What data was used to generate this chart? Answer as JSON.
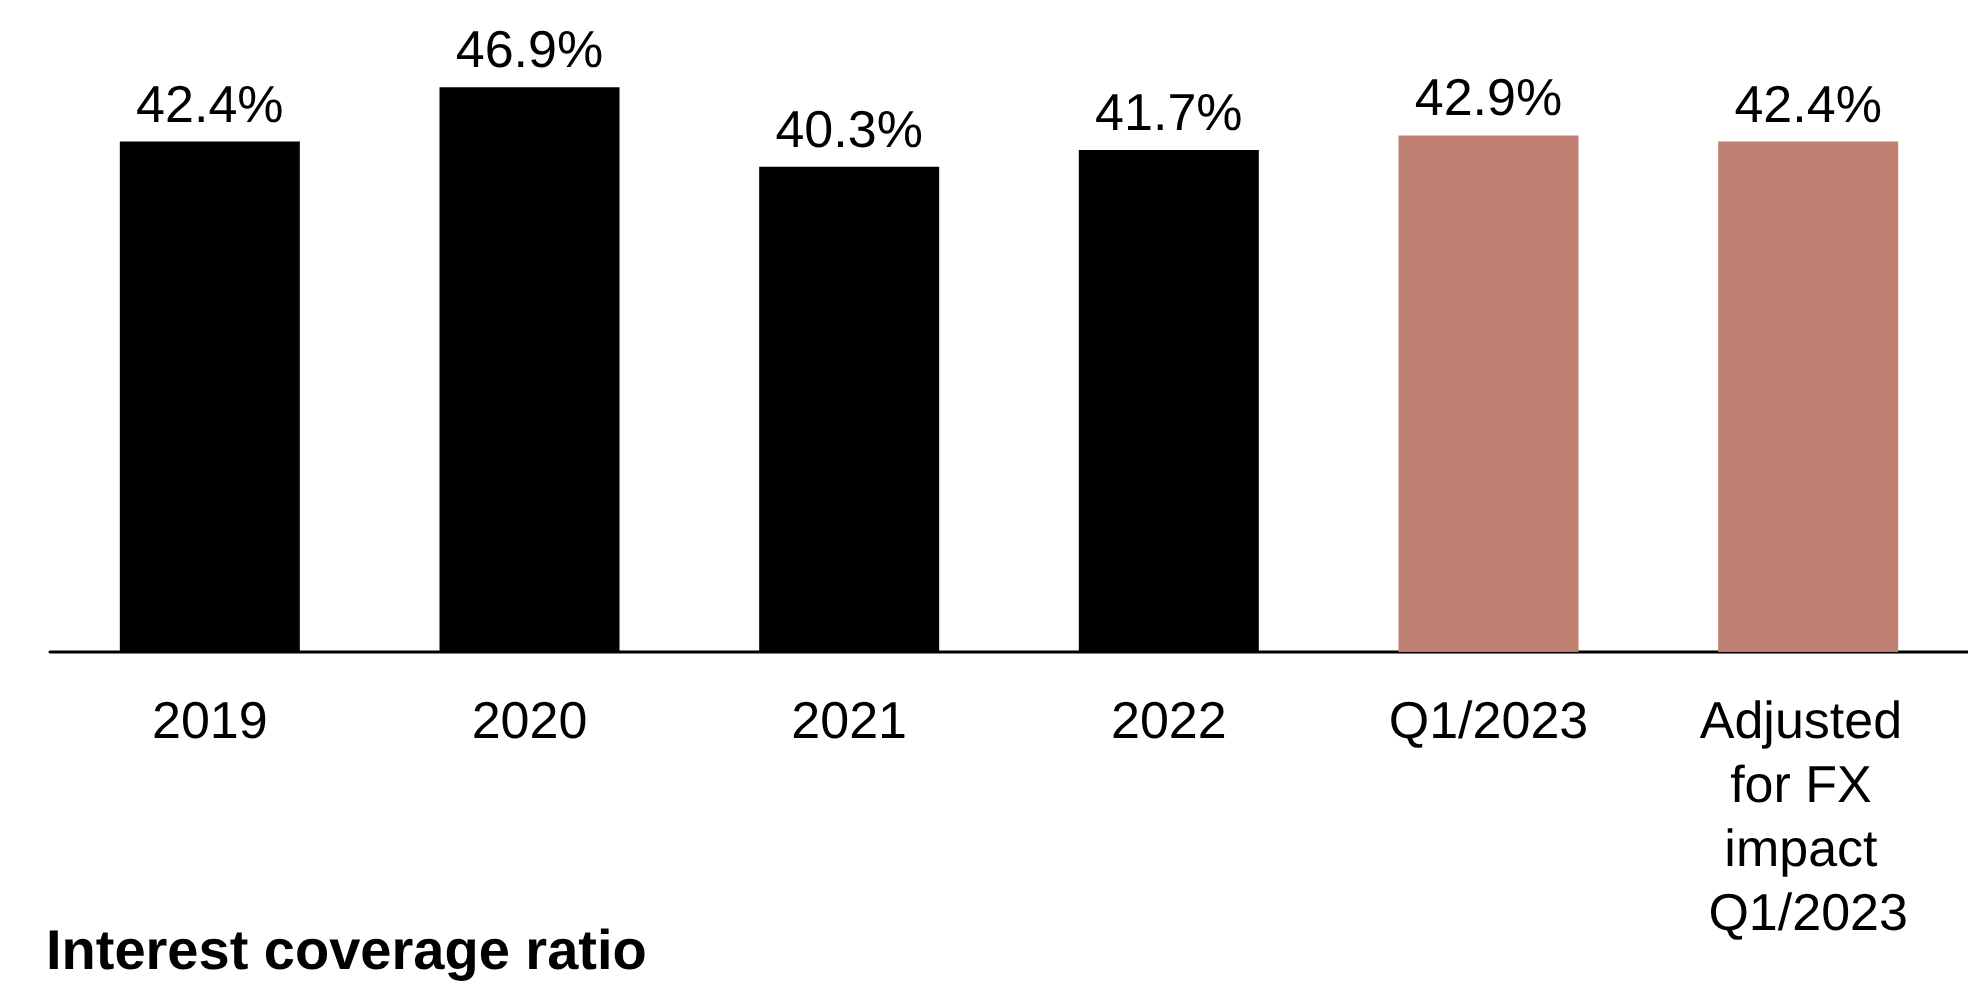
{
  "chart_data": {
    "type": "bar",
    "title": "Interest coverage ratio",
    "categories": [
      "2019",
      "2020",
      "2021",
      "2022",
      "Q1/2023",
      "Adjusted for FX impact Q1/2023"
    ],
    "values": [
      42.4,
      46.9,
      40.3,
      41.7,
      42.9,
      42.4
    ],
    "colors": [
      "#000000",
      "#000000",
      "#000000",
      "#000000",
      "#bf8072",
      "#bf8072"
    ],
    "value_labels": [
      "42.4%",
      "46.9%",
      "40.3%",
      "41.7%",
      "42.9%",
      "42.4%"
    ],
    "grid": false
  }
}
